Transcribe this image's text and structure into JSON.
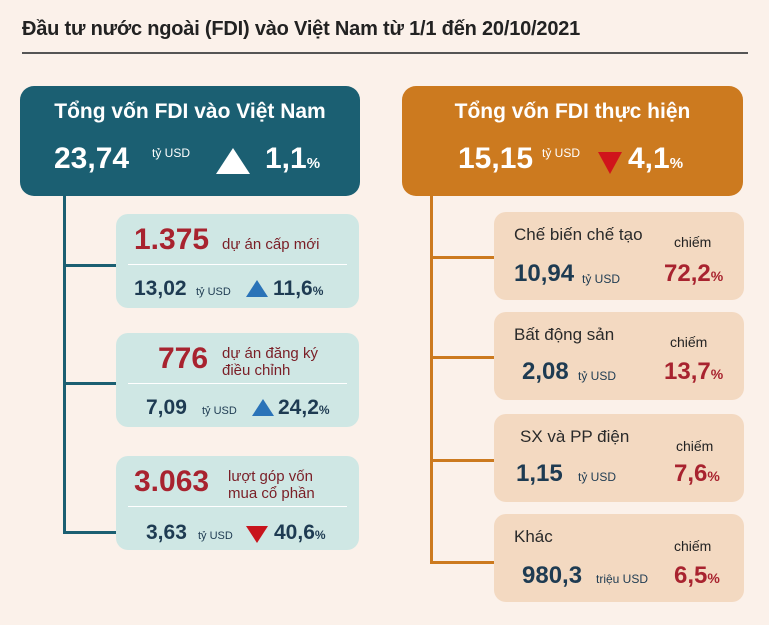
{
  "title": "Đầu tư nước ngoài (FDI) vào Việt Nam từ 1/1 đến 20/10/2021",
  "left": {
    "header": {
      "title": "Tổng vốn FDI vào Việt Nam",
      "value": "23,74",
      "unit": "tỷ USD",
      "change": "1,1",
      "pct_sign": "%",
      "direction": "up"
    },
    "cards": [
      {
        "number": "1.375",
        "desc_line1": "dự án cấp mới",
        "desc_line2": "",
        "capital": "13,02",
        "unit": "tỷ USD",
        "change": "11,6",
        "pct_sign": "%",
        "direction": "up"
      },
      {
        "number": "776",
        "desc_line1": "dự án đăng ký",
        "desc_line2": "điều chỉnh",
        "capital": "7,09",
        "unit": "tỷ USD",
        "change": "24,2",
        "pct_sign": "%",
        "direction": "up"
      },
      {
        "number": "3.063",
        "desc_line1": "lượt góp vốn",
        "desc_line2": "mua cổ phần",
        "capital": "3,63",
        "unit": "tỷ USD",
        "change": "40,6",
        "pct_sign": "%",
        "direction": "down"
      }
    ]
  },
  "right": {
    "header": {
      "title": "Tổng vốn FDI thực hiện",
      "value": "15,15",
      "unit": "tỷ USD",
      "change": "4,1",
      "pct_sign": "%",
      "direction": "down"
    },
    "cards": [
      {
        "label": "Chế biến chế tạo",
        "share_label": "chiếm",
        "value": "10,94",
        "unit": "tỷ USD",
        "share": "72,2",
        "pct_sign": "%"
      },
      {
        "label": "Bất động sản",
        "share_label": "chiếm",
        "value": "2,08",
        "unit": "tỷ USD",
        "share": "13,7",
        "pct_sign": "%"
      },
      {
        "label": "SX và PP điện",
        "share_label": "chiếm",
        "value": "1,15",
        "unit": "tỷ USD",
        "share": "7,6",
        "pct_sign": "%"
      },
      {
        "label": "Khác",
        "share_label": "chiếm",
        "value": "980,3",
        "unit": "triệu USD",
        "share": "6,5",
        "pct_sign": "%"
      }
    ]
  },
  "colors": {
    "teal": "#1b5f72",
    "orange": "#cc7a1f",
    "red": "#d0141b",
    "blue_arrow": "#2a73b8",
    "card_teal_bg": "#cfe7e4",
    "card_orange_bg": "#f3d9c1",
    "page_bg": "#fbf1ea"
  }
}
